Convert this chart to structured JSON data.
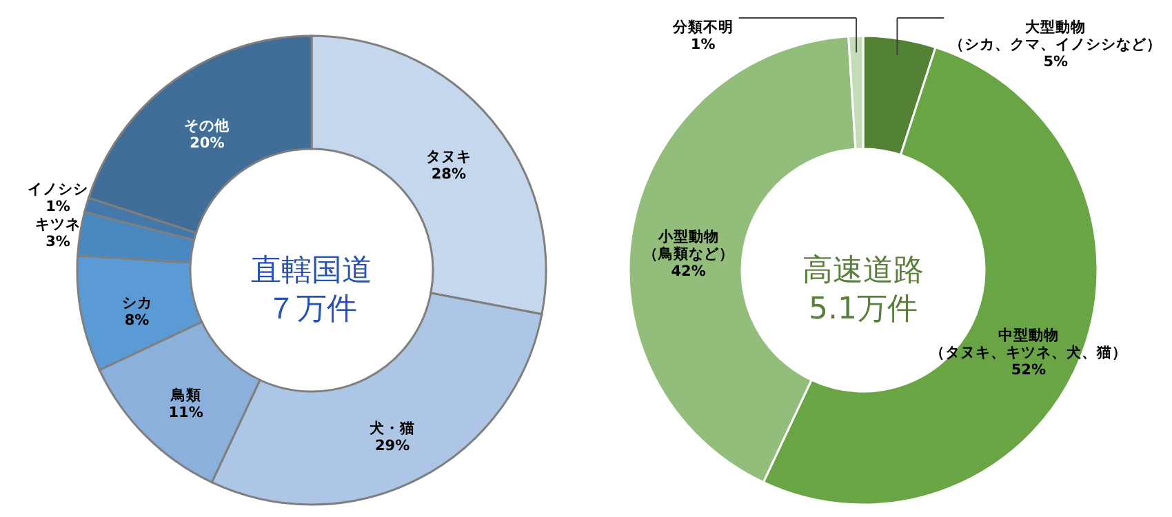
{
  "chart_data": [
    {
      "type": "donut",
      "title": "直轄国道７万件",
      "categories": [
        "タヌキ",
        "犬・猫",
        "鳥類",
        "シカ",
        "キツネ",
        "イノシシ",
        "その他"
      ],
      "values": [
        28,
        29,
        11,
        8,
        3,
        1,
        20
      ],
      "value_labels": [
        "28%",
        "29%",
        "11%",
        "8%",
        "3%",
        "1%",
        "20%"
      ],
      "colors": [
        "#c5d7ec",
        "#adc6e5",
        "#8cb0dc",
        "#5b9bd5",
        "#4a89c0",
        "#4478ab",
        "#416e99"
      ],
      "legend": false
    },
    {
      "type": "donut",
      "title": "高速道路5.1万件",
      "categories": [
        "大型動物（シカ、クマ、イノシシなど）",
        "中型動物（タヌキ、キツネ、犬、猫）",
        "小型動物（鳥類など）",
        "分類不明"
      ],
      "values": [
        5,
        52,
        42,
        1
      ],
      "value_labels": [
        "5%",
        "52%",
        "42%",
        "1%"
      ],
      "colors": [
        "#548235",
        "#6aa545",
        "#93bd7b",
        "#c5dcb8"
      ],
      "legend": false
    }
  ]
}
